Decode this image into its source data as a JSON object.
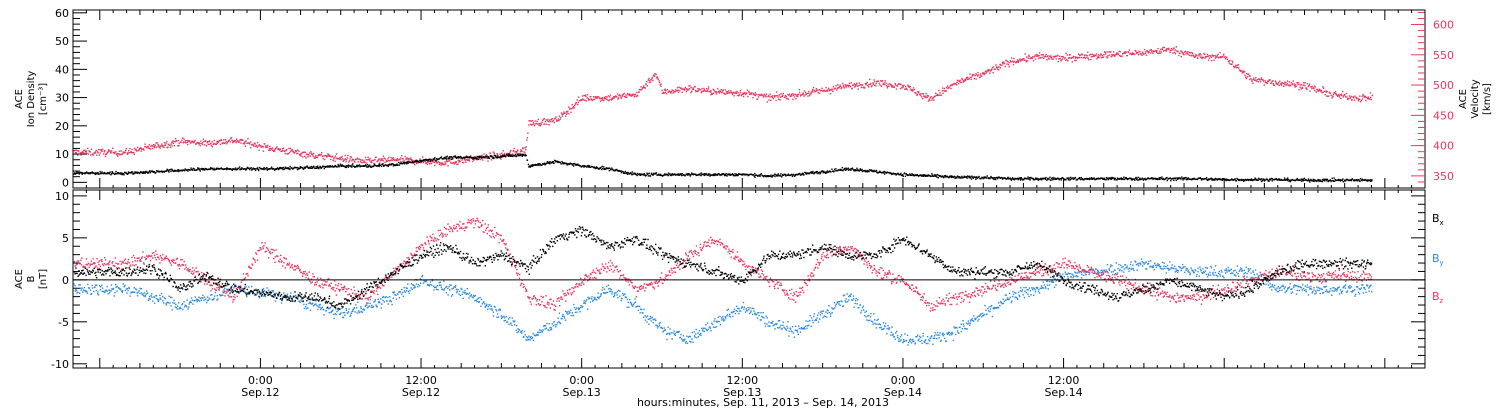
{
  "chart_data": [
    {
      "type": "scatter",
      "panel": "top",
      "left_axis": {
        "label_lines": [
          "ACE",
          "Ion Density",
          "[cm⁻³]"
        ],
        "ylim": [
          -2,
          61
        ],
        "ticks": [
          0,
          10,
          20,
          30,
          40,
          50,
          60
        ],
        "color": "#000000"
      },
      "right_axis": {
        "label_lines": [
          "ACE",
          "Velocity",
          "[km/s]"
        ],
        "ylim": [
          330,
          624
        ],
        "ticks": [
          350,
          400,
          450,
          500,
          550,
          600
        ],
        "color": "#e8365e"
      },
      "series": [
        {
          "axis": "left",
          "color": "#000000",
          "x": [
            -10,
            -8,
            -6,
            -4,
            -2,
            0,
            2,
            4,
            6,
            8,
            10,
            12,
            14,
            16,
            18,
            19.8,
            20,
            22,
            24,
            26,
            28,
            30,
            32,
            34,
            36,
            38,
            40,
            42,
            44,
            46,
            48,
            50,
            52,
            54,
            56,
            58,
            60,
            62,
            64,
            66,
            68,
            70,
            72,
            74,
            76,
            78,
            80,
            82
          ],
          "y": [
            3.5,
            4,
            4.5,
            5,
            5,
            5,
            5.2,
            5.5,
            6,
            6,
            6.5,
            8,
            9,
            9,
            9.5,
            10,
            6,
            7.5,
            6,
            5,
            3,
            3,
            3,
            3,
            3,
            2.5,
            3,
            4,
            5,
            4,
            3,
            2.5,
            2,
            2,
            1.5,
            1.5,
            1.5,
            1.5,
            1.5,
            1.5,
            1.5,
            1.5,
            1.2,
            1.2,
            1.2,
            1,
            1,
            1
          ]
        },
        {
          "axis": "right",
          "color": "#e8365e",
          "x": [
            -10,
            -8,
            -6,
            -4,
            -2,
            0,
            2,
            4,
            6,
            8,
            10,
            12,
            14,
            16,
            18,
            19.8,
            20,
            22,
            23,
            24,
            26,
            28,
            29.5,
            30,
            32,
            34,
            36,
            38,
            40,
            42,
            44,
            46,
            48,
            50,
            52,
            54,
            56,
            58,
            60,
            62,
            64,
            66,
            68,
            70,
            72,
            74,
            76,
            78,
            80,
            82
          ],
          "y": [
            390,
            400,
            408,
            405,
            410,
            400,
            392,
            385,
            380,
            375,
            378,
            375,
            373,
            380,
            385,
            395,
            438,
            442,
            460,
            480,
            480,
            485,
            520,
            490,
            495,
            490,
            488,
            480,
            485,
            492,
            500,
            505,
            500,
            478,
            505,
            520,
            540,
            548,
            545,
            550,
            552,
            555,
            560,
            548,
            548,
            510,
            505,
            500,
            485,
            480
          ]
        }
      ]
    },
    {
      "type": "scatter",
      "panel": "bottom",
      "left_axis": {
        "label_lines": [
          "ACE",
          "B",
          "[nT]"
        ],
        "ylim": [
          -10.5,
          10.7
        ],
        "ticks": [
          -10,
          -5,
          0,
          5,
          10
        ]
      },
      "series": [
        {
          "name": "Bx",
          "color": "#000000",
          "x": [
            -10,
            -8,
            -6,
            -4,
            -2,
            0,
            2,
            4,
            6,
            8,
            10,
            12,
            14,
            16,
            18,
            20,
            22,
            24,
            26,
            28,
            30,
            32,
            34,
            36,
            38,
            40,
            42,
            44,
            46,
            48,
            50,
            52,
            54,
            56,
            58,
            60,
            62,
            64,
            66,
            68,
            70,
            72,
            74,
            76,
            78,
            80,
            82
          ],
          "y": [
            1,
            1.5,
            -1,
            0.5,
            -1,
            -1.5,
            -2,
            -2,
            -3,
            -1,
            1,
            3,
            4,
            2,
            3,
            1.5,
            5,
            6,
            4,
            5,
            3,
            2,
            1,
            0,
            3,
            3,
            4,
            3,
            3,
            5,
            3,
            1,
            1,
            1,
            2,
            0,
            -1,
            -2,
            -1,
            0,
            -1,
            -2,
            -1,
            1,
            2,
            2,
            2
          ]
        },
        {
          "name": "By",
          "color": "#2b8ae0",
          "x": [
            -10,
            -8,
            -6,
            -4,
            -2,
            0,
            2,
            4,
            6,
            8,
            10,
            12,
            14,
            16,
            18,
            20,
            22,
            24,
            26,
            28,
            30,
            32,
            34,
            36,
            38,
            40,
            42,
            44,
            46,
            48,
            50,
            52,
            54,
            56,
            58,
            60,
            62,
            64,
            66,
            68,
            70,
            72,
            74,
            76,
            78,
            80,
            82
          ],
          "y": [
            -1,
            -2,
            -3,
            -2,
            -1,
            -1.5,
            -2,
            -3,
            -4,
            -3,
            -2,
            0,
            -1,
            -2,
            -4,
            -7,
            -5,
            -3,
            -1,
            -3,
            -6,
            -7,
            -5,
            -3,
            -5,
            -6,
            -4,
            -2,
            -5,
            -7,
            -7,
            -6,
            -4,
            -2,
            -1,
            0.5,
            1,
            1.5,
            2,
            1.5,
            1,
            1,
            1,
            -1,
            -1,
            -1,
            -1
          ]
        },
        {
          "name": "Bz",
          "color": "#e8365e",
          "x": [
            -10,
            -8,
            -6,
            -4,
            -2,
            0,
            2,
            4,
            6,
            8,
            10,
            12,
            14,
            16,
            18,
            20,
            22,
            24,
            26,
            28,
            30,
            32,
            34,
            36,
            38,
            40,
            42,
            44,
            46,
            48,
            50,
            52,
            54,
            56,
            58,
            60,
            62,
            64,
            66,
            68,
            70,
            72,
            74,
            76,
            78,
            80,
            82
          ],
          "y": [
            2,
            3,
            2,
            0,
            -2,
            4,
            2,
            0,
            -1,
            -2,
            1,
            4,
            6,
            7,
            5,
            -2,
            -3,
            0,
            2,
            -1,
            0,
            3,
            5,
            2,
            0,
            -2,
            3,
            4,
            1,
            0,
            -3,
            -2,
            -1,
            0,
            1,
            2,
            1,
            0,
            -1,
            -2,
            -2,
            -1,
            0,
            1,
            0.5,
            0.5,
            0.5
          ]
        }
      ],
      "legend": [
        "Bx",
        "By",
        "Bz"
      ]
    }
  ],
  "x_axis": {
    "range_hours": [
      -14,
      87
    ],
    "tick_hours": [
      0,
      12,
      24,
      36,
      48,
      60
    ],
    "tick_labels": [
      {
        "time": "0:00",
        "date": "Sep.12"
      },
      {
        "time": "12:00",
        "date": "Sep.12"
      },
      {
        "time": "0:00",
        "date": "Sep.13"
      },
      {
        "time": "12:00",
        "date": "Sep.13"
      },
      {
        "time": "0:00",
        "date": "Sep.14"
      },
      {
        "time": "12:00",
        "date": "Sep.14"
      }
    ],
    "title": "hours:minutes, Sep. 11, 2013 – Sep. 14, 2013"
  },
  "legend_labels": {
    "bx": {
      "main": "B",
      "sub": "x"
    },
    "by": {
      "main": "B",
      "sub": "y"
    },
    "bz": {
      "main": "B",
      "sub": "z"
    }
  },
  "colors": {
    "black": "#000000",
    "red": "#e8365e",
    "blue": "#2b8ae0"
  }
}
